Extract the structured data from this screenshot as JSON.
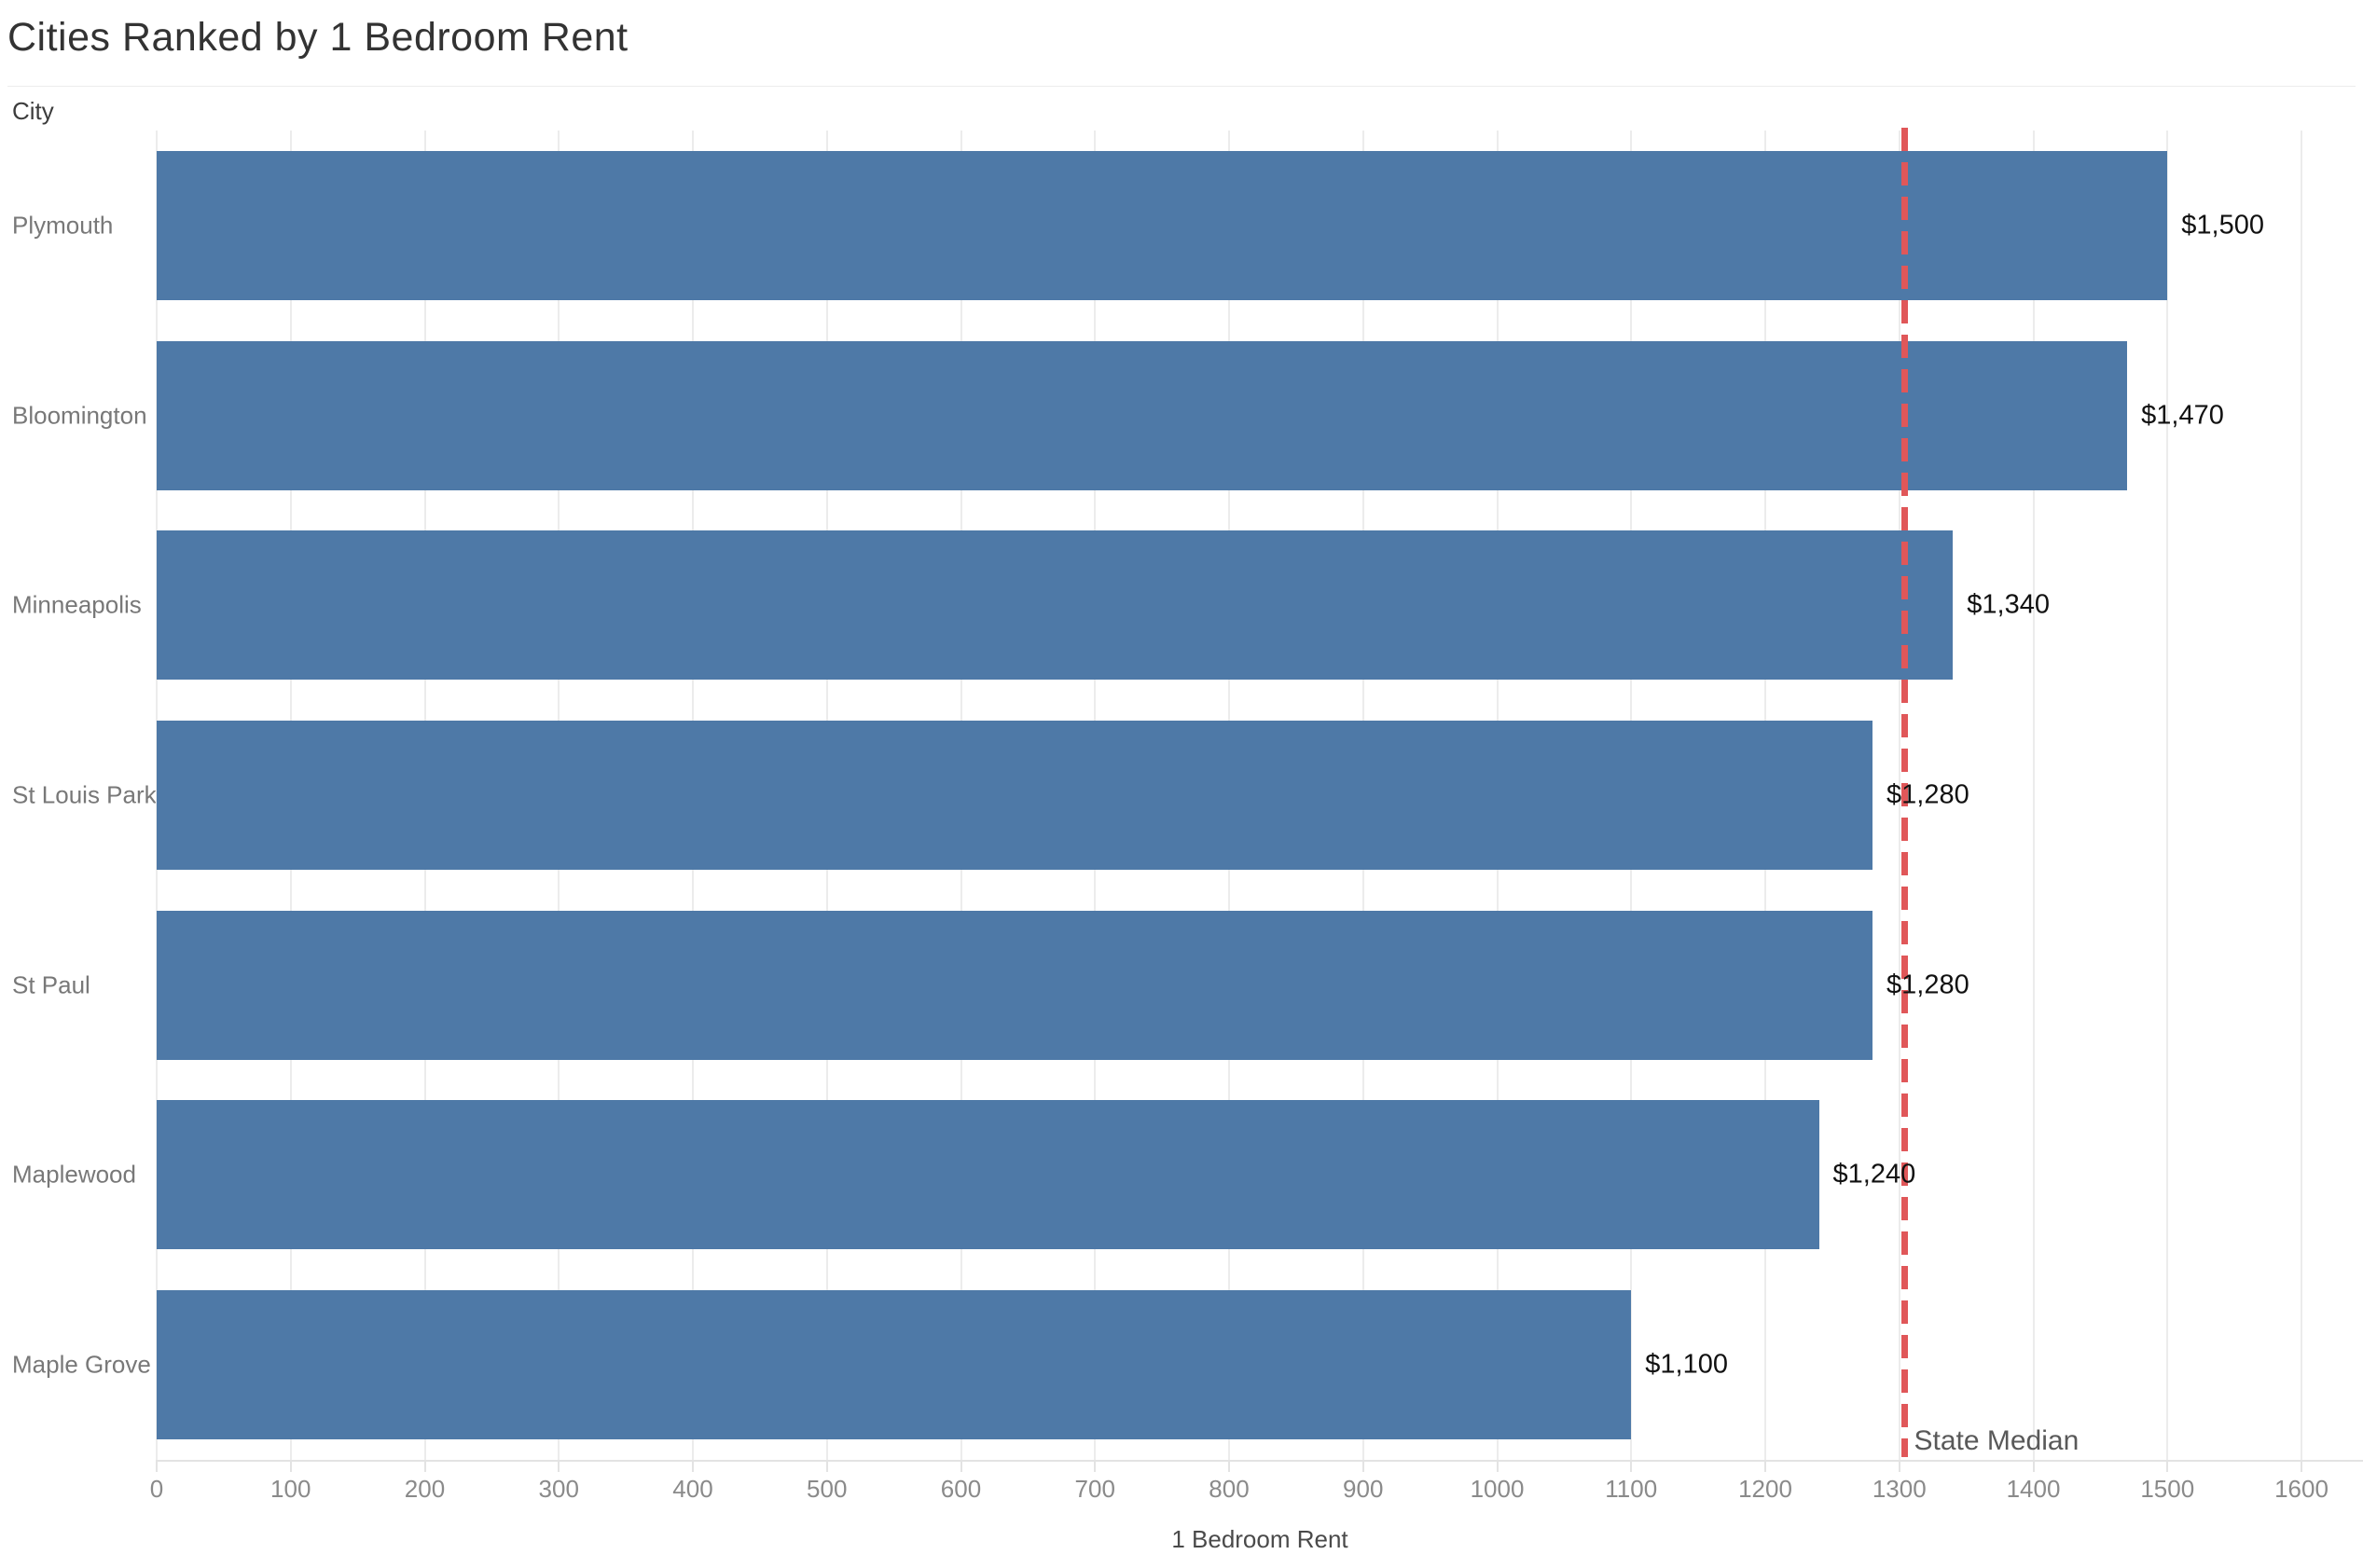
{
  "header": {
    "title": "Cities Ranked by 1 Bedroom Rent"
  },
  "chart_data": {
    "type": "bar",
    "orientation": "horizontal",
    "title": "Cities Ranked by 1 Bedroom Rent",
    "row_axis_label": "City",
    "xlabel": "1 Bedroom Rent",
    "categories": [
      "Plymouth",
      "Bloomington",
      "Minneapolis",
      "St Louis Park",
      "St Paul",
      "Maplewood",
      "Maple Grove"
    ],
    "values": [
      1500,
      1470,
      1340,
      1280,
      1280,
      1240,
      1100
    ],
    "bar_labels": [
      "$1,500",
      "$1,470",
      "$1,340",
      "$1,280",
      "$1,280",
      "$1,240",
      "$1,100"
    ],
    "xlim": [
      0,
      1600
    ],
    "x_ticks": [
      0,
      100,
      200,
      300,
      400,
      500,
      600,
      700,
      800,
      900,
      1000,
      1100,
      1200,
      1300,
      1400,
      1500,
      1600
    ],
    "grid": "vertical-light",
    "legend_position": "none",
    "reference_line": {
      "label": "State Median",
      "value": 1304,
      "style": "dashed"
    }
  },
  "colors": {
    "bar": "#4e79a7",
    "reference_line": "#e05759",
    "gridline": "#ececec",
    "axis_line": "#e3e3e3",
    "title_text": "#333333",
    "category_text": "#787878",
    "tick_text": "#8a8a8a",
    "value_text": "#111111",
    "reference_label_text": "#595959"
  }
}
